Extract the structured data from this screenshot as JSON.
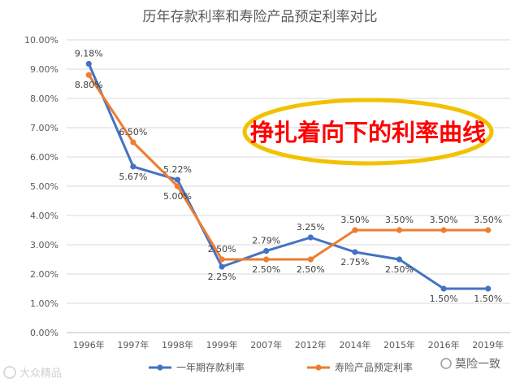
{
  "chart_data": {
    "type": "line",
    "title": "历年存款利率和寿险产品预定利率对比",
    "categories": [
      "1996年",
      "1997年",
      "1998年",
      "1999年",
      "2007年",
      "2012年",
      "2014年",
      "2015年",
      "2016年",
      "2019年"
    ],
    "series": [
      {
        "name": "一年期存款利率",
        "color": "#4472C4",
        "values": [
          9.18,
          5.67,
          5.22,
          2.25,
          2.79,
          3.25,
          2.75,
          2.5,
          1.5,
          1.5
        ],
        "labels": [
          "9.18%",
          "5.67%",
          "5.22%",
          "2.25%",
          "2.79%",
          "3.25%",
          "2.75%",
          "2.50%",
          "1.50%",
          "1.50%"
        ]
      },
      {
        "name": "寿险产品预定利率",
        "color": "#ED7D31",
        "values": [
          8.8,
          6.5,
          5.0,
          2.5,
          2.5,
          2.5,
          3.5,
          3.5,
          3.5,
          3.5
        ],
        "labels": [
          "8.80%",
          "6.50%",
          "5.00%",
          "2.50%",
          "2.50%",
          "2.50%",
          "3.50%",
          "3.50%",
          "3.50%",
          "3.50%"
        ]
      }
    ],
    "ylim": [
      0,
      10
    ],
    "yticks": [
      "0.00%",
      "1.00%",
      "2.00%",
      "3.00%",
      "4.00%",
      "5.00%",
      "6.00%",
      "7.00%",
      "8.00%",
      "9.00%",
      "10.00%"
    ],
    "grid": true,
    "legend_position": "bottom",
    "annotation": {
      "text": "挣扎着向下的利率曲线",
      "text_color": "#FF0000",
      "ring_color": "#F2C200"
    }
  },
  "watermarks": {
    "left": "大众精品",
    "right": "莫险一致"
  }
}
